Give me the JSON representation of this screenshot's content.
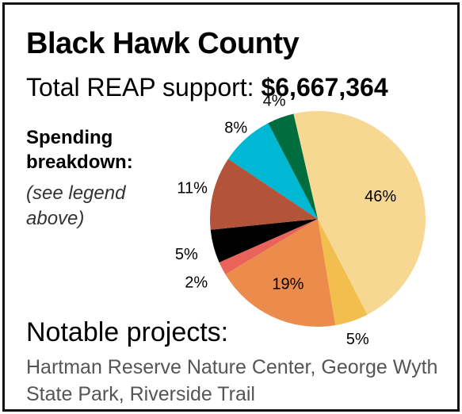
{
  "title": "Black Hawk County",
  "total": {
    "label": "Total REAP support:",
    "amount": "$6,667,364"
  },
  "breakdown": {
    "heading": "Spending breakdown:",
    "note": "(see legend above)"
  },
  "notable": {
    "heading": "Notable projects:",
    "text": "Hartman Reserve Nature Center, George Wyth State Park, Riverside Trail"
  },
  "chart_data": {
    "type": "pie",
    "slices": [
      {
        "value": 46,
        "label": "46%",
        "color": "#f7d893"
      },
      {
        "value": 5,
        "label": "5%",
        "color": "#f2be4e"
      },
      {
        "value": 19,
        "label": "19%",
        "color": "#ec8c4c"
      },
      {
        "value": 2,
        "label": "2%",
        "color": "#e9635a"
      },
      {
        "value": 5,
        "label": "5%",
        "color": "#000000"
      },
      {
        "value": 11,
        "label": "11%",
        "color": "#b2533a"
      },
      {
        "value": 8,
        "label": "8%",
        "color": "#00b8d4"
      },
      {
        "value": 4,
        "label": "4%",
        "color": "#006d3f"
      }
    ]
  }
}
